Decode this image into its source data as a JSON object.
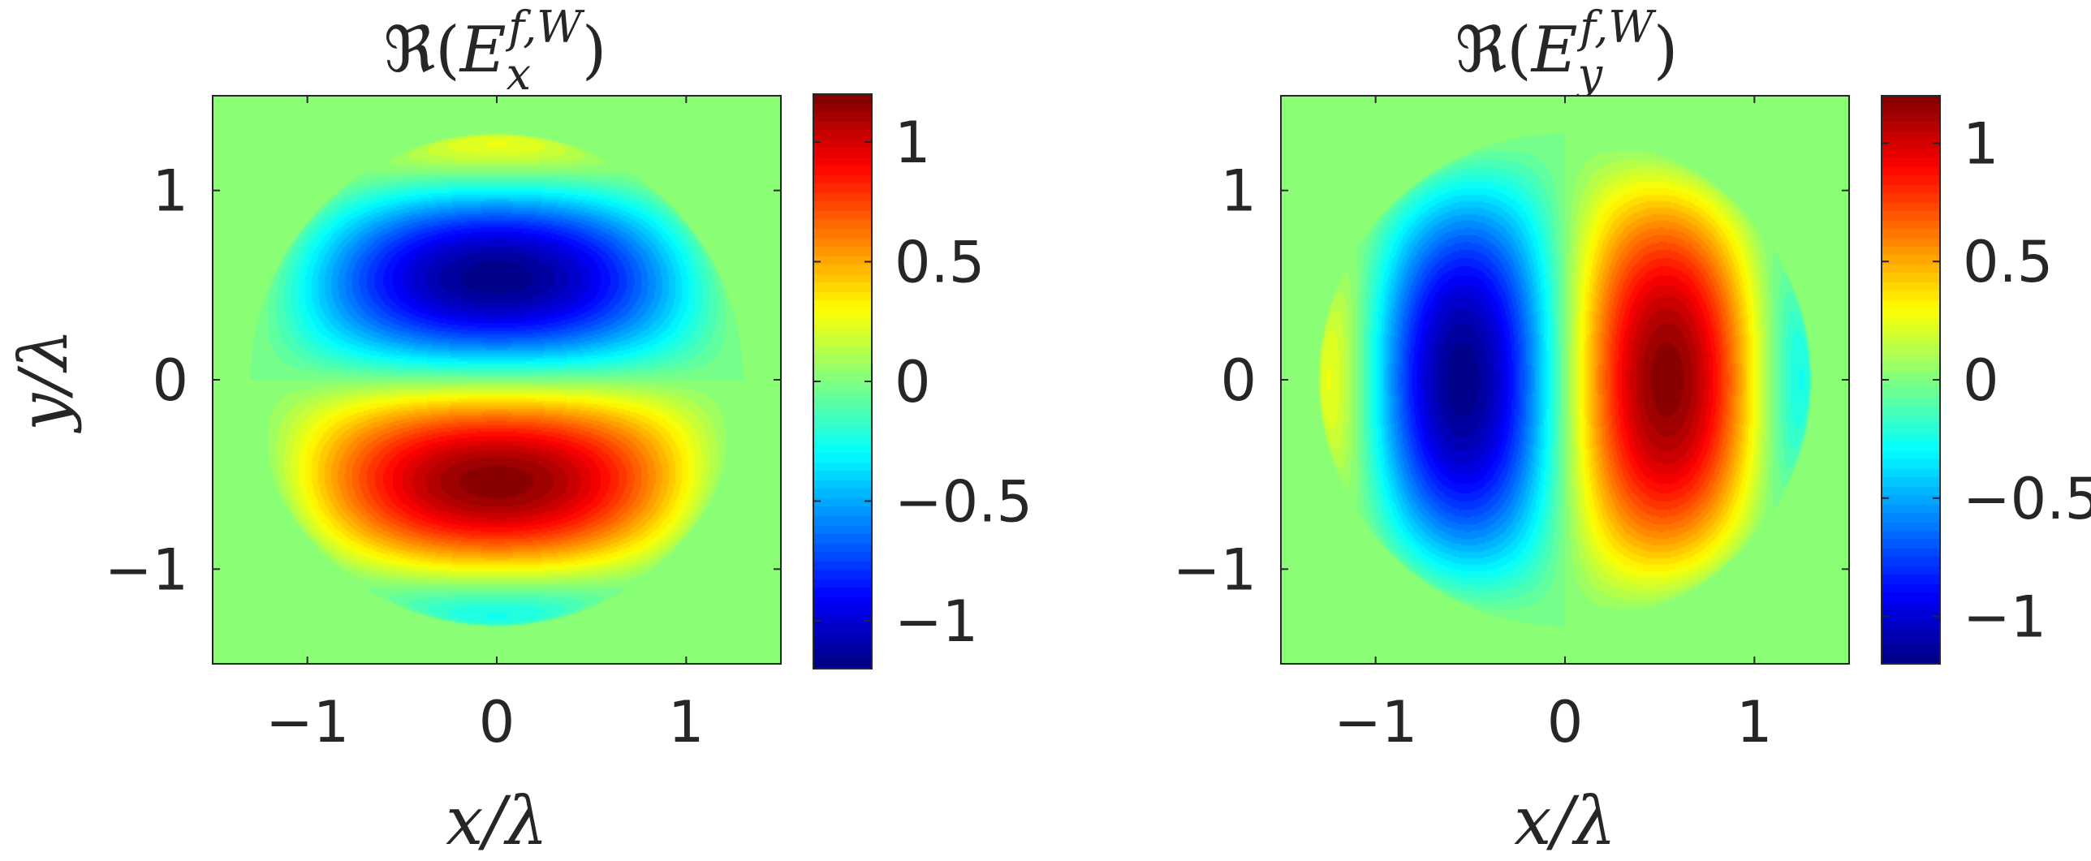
{
  "chart_data": [
    {
      "type": "heatmap",
      "title": "ℜ(Ex f,W)",
      "title_parts": {
        "op": "ℜ(",
        "base": "E",
        "sub": "x",
        "sup": "f,W",
        "close": ")"
      },
      "xlabel": "x/λ",
      "ylabel": "y/λ",
      "xlim": [
        -1.5,
        1.5
      ],
      "ylim": [
        -1.5,
        1.5
      ],
      "xticks": [
        -1,
        0,
        1
      ],
      "yticks": [
        1,
        0,
        -1
      ],
      "xtick_labels": [
        "−1",
        "0",
        "1"
      ],
      "ytick_labels": [
        "1",
        "0",
        "−1"
      ],
      "colormap": "jet",
      "clim": [
        -1.2,
        1.2
      ],
      "colorbar_ticks": [
        1,
        0.5,
        0,
        -0.5,
        -1
      ],
      "colorbar_tick_labels": [
        "1",
        "0.5",
        "0",
        "−0.5",
        "−1"
      ],
      "field": "Ex",
      "extrema": [
        {
          "x": 0,
          "y": 0.55,
          "value": -1.2
        },
        {
          "x": 0,
          "y": -0.55,
          "value": 1.2
        }
      ]
    },
    {
      "type": "heatmap",
      "title": "ℜ(Ey f,W)",
      "title_parts": {
        "op": "ℜ(",
        "base": "E",
        "sub": "y",
        "sup": "f,W",
        "close": ")"
      },
      "xlabel": "x/λ",
      "ylabel": "",
      "xlim": [
        -1.5,
        1.5
      ],
      "ylim": [
        -1.5,
        1.5
      ],
      "xticks": [
        -1,
        0,
        1
      ],
      "yticks": [
        1,
        0,
        -1
      ],
      "xtick_labels": [
        "−1",
        "0",
        "1"
      ],
      "ytick_labels": [
        "1",
        "0",
        "−1"
      ],
      "colormap": "jet",
      "clim": [
        -1.2,
        1.2
      ],
      "colorbar_ticks": [
        1,
        0.5,
        0,
        -0.5,
        -1
      ],
      "colorbar_tick_labels": [
        "1",
        "0.5",
        "0",
        "−0.5",
        "−1"
      ],
      "field": "Ey",
      "extrema": [
        {
          "x": -0.55,
          "y": 0,
          "value": -1.2
        },
        {
          "x": 0.55,
          "y": 0,
          "value": 1.2
        }
      ]
    }
  ]
}
